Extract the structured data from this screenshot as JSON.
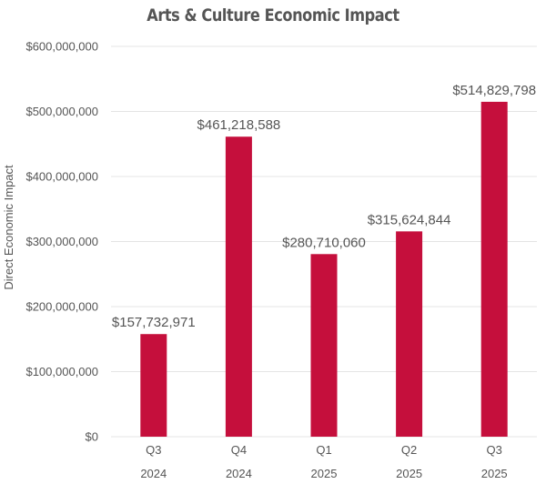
{
  "chart_data": {
    "type": "bar",
    "title": "Arts & Culture Economic Impact",
    "xlabel": "",
    "ylabel": "Direct Economic Impact",
    "categories": [
      {
        "quarter": "Q3",
        "year": "2024"
      },
      {
        "quarter": "Q4",
        "year": "2024"
      },
      {
        "quarter": "Q1",
        "year": "2025"
      },
      {
        "quarter": "Q2",
        "year": "2025"
      },
      {
        "quarter": "Q3",
        "year": "2025"
      }
    ],
    "values": [
      157732971,
      461218588,
      280710060,
      315624844,
      514829798
    ],
    "data_labels": [
      "$157,732,971",
      "$461,218,588",
      "$280,710,060",
      "$315,624,844",
      "$514,829,798"
    ],
    "ylim": [
      0,
      600000000
    ],
    "yticks": [
      0,
      100000000,
      200000000,
      300000000,
      400000000,
      500000000,
      600000000
    ],
    "ytick_labels": [
      "$0",
      "$100,000,000",
      "$200,000,000",
      "$300,000,000",
      "$400,000,000",
      "$500,000,000",
      "$600,000,000"
    ],
    "grid": true,
    "bar_color": "#c50f3c"
  }
}
